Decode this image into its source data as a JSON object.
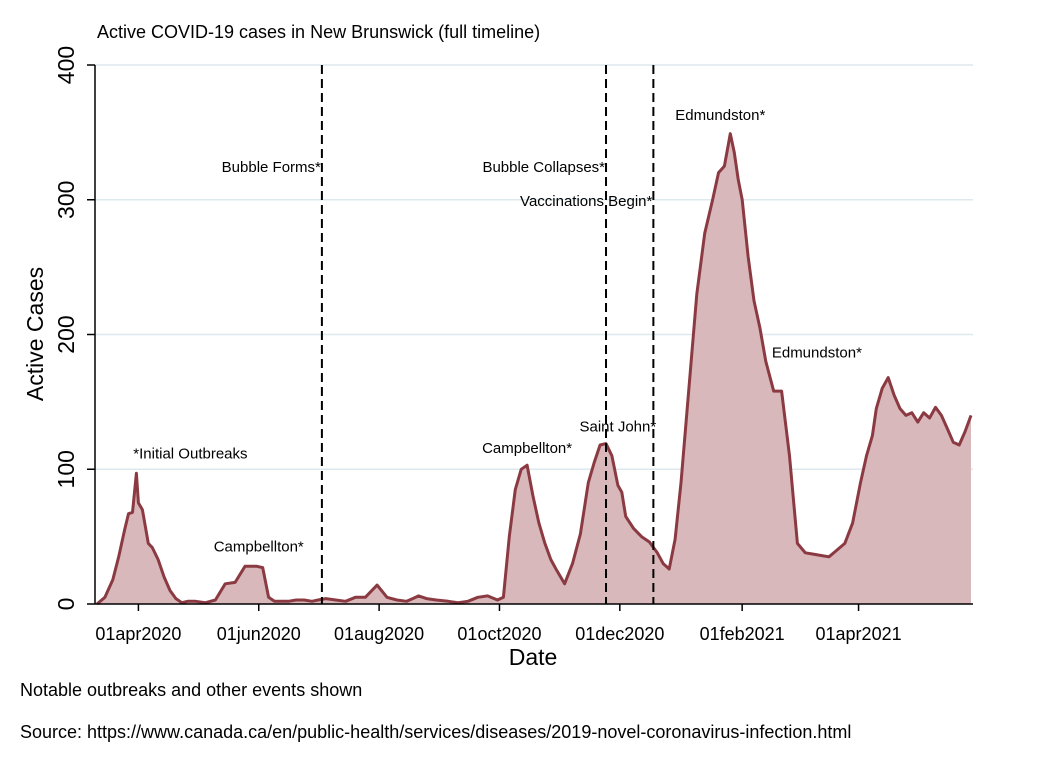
{
  "chart_data": {
    "type": "area",
    "title": "Active COVID-19 cases in New Brunswick (full timeline)",
    "xlabel": "Date",
    "ylabel": "Active Cases",
    "ylim": [
      0,
      400
    ],
    "yticks": [
      0,
      100,
      200,
      300,
      400
    ],
    "xlim": [
      "2020-03-10",
      "2021-05-29"
    ],
    "xticks": [
      {
        "date": "2020-04-01",
        "label": "01apr2020"
      },
      {
        "date": "2020-06-01",
        "label": "01jun2020"
      },
      {
        "date": "2020-08-01",
        "label": "01aug2020"
      },
      {
        "date": "2020-10-01",
        "label": "01oct2020"
      },
      {
        "date": "2020-12-01",
        "label": "01dec2020"
      },
      {
        "date": "2021-02-01",
        "label": "01feb2021"
      },
      {
        "date": "2021-04-01",
        "label": "01apr2021"
      }
    ],
    "grid": true,
    "colors": {
      "line": "#8b3a42",
      "fill": "#d9b8bc",
      "grid": "#dde9ee",
      "vline": "#000000"
    },
    "series": [
      {
        "x": [
          "2020-03-11",
          "2020-03-15",
          "2020-03-19",
          "2020-03-22",
          "2020-03-25",
          "2020-03-27",
          "2020-03-29",
          "2020-03-31",
          "2020-04-01",
          "2020-04-03",
          "2020-04-06",
          "2020-04-08",
          "2020-04-11",
          "2020-04-14",
          "2020-04-17",
          "2020-04-20",
          "2020-04-23",
          "2020-04-26",
          "2020-04-30",
          "2020-05-05",
          "2020-05-10",
          "2020-05-15",
          "2020-05-20",
          "2020-05-25",
          "2020-05-28",
          "2020-05-31",
          "2020-06-03",
          "2020-06-06",
          "2020-06-09",
          "2020-06-12",
          "2020-06-16",
          "2020-06-20",
          "2020-06-24",
          "2020-06-28",
          "2020-07-01",
          "2020-07-05",
          "2020-07-10",
          "2020-07-15",
          "2020-07-20",
          "2020-07-25",
          "2020-07-31",
          "2020-08-05",
          "2020-08-10",
          "2020-08-15",
          "2020-08-18",
          "2020-08-21",
          "2020-08-25",
          "2020-08-30",
          "2020-09-05",
          "2020-09-10",
          "2020-09-15",
          "2020-09-20",
          "2020-09-25",
          "2020-09-30",
          "2020-10-03",
          "2020-10-06",
          "2020-10-09",
          "2020-10-12",
          "2020-10-15",
          "2020-10-18",
          "2020-10-21",
          "2020-10-24",
          "2020-10-27",
          "2020-10-30",
          "2020-11-03",
          "2020-11-07",
          "2020-11-11",
          "2020-11-15",
          "2020-11-18",
          "2020-11-21",
          "2020-11-24",
          "2020-11-27",
          "2020-11-30",
          "2020-12-02",
          "2020-12-04",
          "2020-12-08",
          "2020-12-12",
          "2020-12-16",
          "2020-12-20",
          "2020-12-23",
          "2020-12-26",
          "2020-12-29",
          "2021-01-01",
          "2021-01-05",
          "2021-01-09",
          "2021-01-13",
          "2021-01-17",
          "2021-01-20",
          "2021-01-23",
          "2021-01-26",
          "2021-01-28",
          "2021-01-30",
          "2021-02-01",
          "2021-02-04",
          "2021-02-07",
          "2021-02-10",
          "2021-02-13",
          "2021-02-17",
          "2021-02-21",
          "2021-02-25",
          "2021-03-01",
          "2021-03-05",
          "2021-03-09",
          "2021-03-13",
          "2021-03-17",
          "2021-03-21",
          "2021-03-25",
          "2021-03-29",
          "2021-04-02",
          "2021-04-05",
          "2021-04-08",
          "2021-04-10",
          "2021-04-13",
          "2021-04-16",
          "2021-04-19",
          "2021-04-22",
          "2021-04-25",
          "2021-04-28",
          "2021-05-01",
          "2021-05-04",
          "2021-05-07",
          "2021-05-10",
          "2021-05-13",
          "2021-05-16",
          "2021-05-19",
          "2021-05-22",
          "2021-05-25",
          "2021-05-28"
        ],
        "y": [
          0,
          5,
          18,
          35,
          55,
          67,
          68,
          97,
          75,
          70,
          45,
          42,
          33,
          20,
          10,
          4,
          1,
          2,
          2,
          1,
          3,
          15,
          16,
          28,
          28,
          28,
          27,
          5,
          2,
          2,
          2,
          3,
          3,
          2,
          3,
          4,
          3,
          2,
          5,
          5,
          14,
          5,
          3,
          2,
          4,
          6,
          4,
          3,
          2,
          1,
          2,
          5,
          6,
          3,
          5,
          50,
          85,
          100,
          103,
          80,
          60,
          45,
          33,
          25,
          15,
          30,
          52,
          90,
          105,
          118,
          119,
          110,
          88,
          83,
          65,
          56,
          50,
          46,
          38,
          30,
          26,
          48,
          90,
          160,
          230,
          275,
          300,
          320,
          325,
          349,
          335,
          315,
          300,
          258,
          225,
          205,
          180,
          158,
          158,
          110,
          45,
          38,
          37,
          36,
          35,
          40,
          45,
          60,
          90,
          110,
          125,
          145,
          160,
          168,
          155,
          145,
          140,
          142,
          135,
          142,
          138,
          146,
          140,
          130,
          120,
          118,
          128,
          140
        ]
      }
    ],
    "events": [
      {
        "date": "2020-07-03",
        "label": "Bubble Forms*"
      },
      {
        "date": "2020-11-24",
        "label": "Bubble Collapses*"
      },
      {
        "date": "2020-12-18",
        "label": "Vaccinations Begin*"
      }
    ],
    "annotations": [
      {
        "date": "2020-04-01",
        "value": 108,
        "label": "*Initial Outbreaks"
      },
      {
        "date": "2020-06-01",
        "value": 39,
        "label": "Campbellton*"
      },
      {
        "date": "2020-10-15",
        "value": 112,
        "label": "Campbellton*"
      },
      {
        "date": "2020-11-30",
        "value": 128,
        "label": "Saint John*"
      },
      {
        "date": "2021-01-28",
        "value": 359,
        "label": "Edmundston*"
      },
      {
        "date": "2021-02-11",
        "value": 183,
        "label": "Edmundston*"
      }
    ]
  },
  "notes": [
    "Notable outbreaks and other events shown",
    "Source: https://www.canada.ca/en/public-health/services/diseases/2019-novel-coronavirus-infection.html"
  ]
}
